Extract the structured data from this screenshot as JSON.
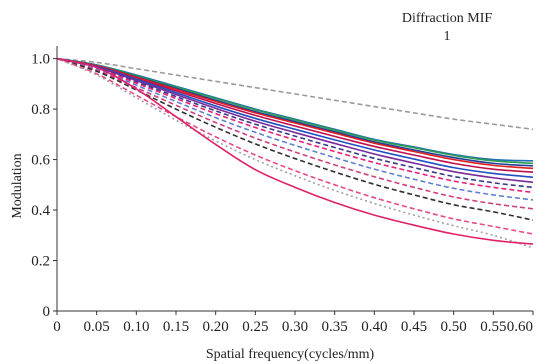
{
  "chart_data": {
    "type": "line",
    "title": "Diffraction MIF",
    "subtitle": "1",
    "xlabel": "Spatial frequency(cycles/mm)",
    "ylabel": "Modulation",
    "xlim": [
      0,
      0.6
    ],
    "ylim": [
      0,
      1.05
    ],
    "grid": false,
    "x_ticks": [
      "0",
      "0.05",
      "0.10",
      "0.15",
      "0.20",
      "0.25",
      "0.30",
      "0.35",
      "0.40",
      "0.45",
      "0.50",
      "0.55",
      "0.60"
    ],
    "y_ticks": [
      "0",
      "0.2",
      "0.4",
      "0.6",
      "0.8",
      "1.0"
    ],
    "x": [
      0,
      0.05,
      0.1,
      0.15,
      0.2,
      0.25,
      0.3,
      0.35,
      0.4,
      0.45,
      0.5,
      0.55,
      0.6
    ],
    "series": [
      {
        "color": "#9a9a9a",
        "dash": "dashed",
        "values": [
          1.0,
          0.985,
          0.96,
          0.935,
          0.91,
          0.885,
          0.86,
          0.835,
          0.81,
          0.785,
          0.76,
          0.74,
          0.72
        ]
      },
      {
        "color": "#1f6fb4",
        "dash": "solid",
        "values": [
          1.0,
          0.975,
          0.935,
          0.89,
          0.845,
          0.8,
          0.76,
          0.72,
          0.68,
          0.65,
          0.62,
          0.6,
          0.595
        ]
      },
      {
        "color": "#2b9a52",
        "dash": "solid",
        "values": [
          1.0,
          0.974,
          0.932,
          0.887,
          0.842,
          0.797,
          0.757,
          0.717,
          0.677,
          0.647,
          0.617,
          0.595,
          0.585
        ]
      },
      {
        "color": "#1f3f9a",
        "dash": "solid",
        "values": [
          1.0,
          0.972,
          0.928,
          0.882,
          0.835,
          0.79,
          0.75,
          0.71,
          0.67,
          0.638,
          0.608,
          0.585,
          0.575
        ]
      },
      {
        "color": "#e02020",
        "dash": "solid",
        "values": [
          1.0,
          0.972,
          0.926,
          0.878,
          0.83,
          0.785,
          0.745,
          0.705,
          0.665,
          0.632,
          0.6,
          0.577,
          0.565
        ]
      },
      {
        "color": "#c01050",
        "dash": "solid",
        "values": [
          1.0,
          0.97,
          0.922,
          0.872,
          0.822,
          0.775,
          0.733,
          0.692,
          0.652,
          0.618,
          0.585,
          0.562,
          0.55
        ]
      },
      {
        "color": "#2050c0",
        "dash": "solid",
        "values": [
          1.0,
          0.968,
          0.918,
          0.865,
          0.812,
          0.763,
          0.72,
          0.678,
          0.638,
          0.602,
          0.568,
          0.545,
          0.53
        ]
      },
      {
        "color": "#7a2a9a",
        "dash": "solid",
        "values": [
          1.0,
          0.966,
          0.913,
          0.858,
          0.803,
          0.752,
          0.707,
          0.664,
          0.622,
          0.586,
          0.552,
          0.528,
          0.51
        ]
      },
      {
        "color": "#3a3a8a",
        "dash": "dashed",
        "values": [
          1.0,
          0.964,
          0.908,
          0.85,
          0.793,
          0.74,
          0.693,
          0.648,
          0.605,
          0.568,
          0.533,
          0.508,
          0.49
        ]
      },
      {
        "color": "#e8207a",
        "dash": "dashed",
        "values": [
          1.0,
          0.962,
          0.903,
          0.842,
          0.782,
          0.727,
          0.678,
          0.632,
          0.588,
          0.55,
          0.515,
          0.49,
          0.47
        ]
      },
      {
        "color": "#6080d0",
        "dash": "dashed",
        "values": [
          1.0,
          0.958,
          0.895,
          0.83,
          0.766,
          0.708,
          0.656,
          0.608,
          0.562,
          0.522,
          0.486,
          0.46,
          0.44
        ]
      },
      {
        "color": "#d04080",
        "dash": "dashed",
        "values": [
          1.0,
          0.954,
          0.885,
          0.815,
          0.747,
          0.685,
          0.63,
          0.579,
          0.532,
          0.49,
          0.452,
          0.425,
          0.405
        ]
      },
      {
        "color": "#303030",
        "dash": "dashed",
        "values": [
          1.0,
          0.95,
          0.876,
          0.8,
          0.728,
          0.662,
          0.604,
          0.551,
          0.502,
          0.46,
          0.421,
          0.393,
          0.36
        ]
      },
      {
        "color": "#e84a8a",
        "dash": "dashed",
        "values": [
          1.0,
          0.94,
          0.855,
          0.77,
          0.69,
          0.618,
          0.556,
          0.5,
          0.449,
          0.405,
          0.365,
          0.335,
          0.305
        ]
      },
      {
        "color": "#a0a0a0",
        "dash": "dotted",
        "values": [
          1.0,
          0.935,
          0.845,
          0.756,
          0.674,
          0.6,
          0.536,
          0.478,
          0.426,
          0.38,
          0.338,
          0.3,
          0.25
        ]
      },
      {
        "color": "#e0206a",
        "dash": "solid",
        "values": [
          1.0,
          0.965,
          0.88,
          0.77,
          0.66,
          0.56,
          0.49,
          0.43,
          0.38,
          0.34,
          0.305,
          0.28,
          0.265
        ]
      }
    ]
  }
}
